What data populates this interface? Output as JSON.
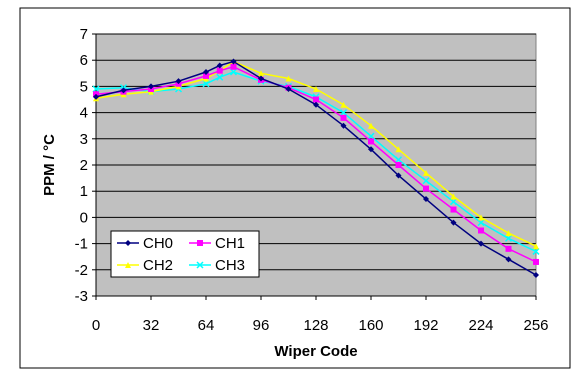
{
  "chart_data": {
    "type": "line",
    "title": "",
    "xlabel": "Wiper Code",
    "ylabel": "PPM / °C",
    "xlim": [
      0,
      256
    ],
    "ylim": [
      -3,
      7
    ],
    "xticks": [
      0,
      32,
      64,
      96,
      128,
      160,
      192,
      224,
      256
    ],
    "yticks": [
      -3,
      -2,
      -1,
      0,
      1,
      2,
      3,
      4,
      5,
      6,
      7
    ],
    "grid": true,
    "legend_position": "bottom-left",
    "plot_background": "#c0c0c0",
    "series": [
      {
        "name": "CH0",
        "color": "#000080",
        "marker": "diamond",
        "x": [
          0,
          16,
          32,
          48,
          64,
          72,
          80,
          96,
          112,
          128,
          144,
          160,
          176,
          192,
          208,
          224,
          240,
          256
        ],
        "y": [
          4.6,
          4.85,
          5.0,
          5.2,
          5.55,
          5.8,
          5.95,
          5.3,
          4.9,
          4.3,
          3.5,
          2.6,
          1.6,
          0.7,
          -0.2,
          -1.0,
          -1.6,
          -2.2
        ]
      },
      {
        "name": "CH1",
        "color": "#ff00ff",
        "marker": "square",
        "x": [
          0,
          16,
          32,
          48,
          64,
          72,
          80,
          96,
          112,
          128,
          144,
          160,
          176,
          192,
          208,
          224,
          240,
          256
        ],
        "y": [
          4.7,
          4.8,
          4.9,
          5.1,
          5.4,
          5.6,
          5.75,
          5.25,
          4.95,
          4.5,
          3.8,
          2.9,
          2.0,
          1.1,
          0.3,
          -0.5,
          -1.2,
          -1.7
        ]
      },
      {
        "name": "CH2",
        "color": "#ffff00",
        "marker": "triangle",
        "x": [
          0,
          16,
          32,
          48,
          64,
          72,
          80,
          96,
          112,
          128,
          144,
          160,
          176,
          192,
          208,
          224,
          240,
          256
        ],
        "y": [
          4.55,
          4.7,
          4.8,
          5.0,
          5.3,
          5.6,
          5.95,
          5.5,
          5.3,
          4.9,
          4.3,
          3.5,
          2.6,
          1.7,
          0.8,
          0.0,
          -0.6,
          -1.1
        ]
      },
      {
        "name": "CH3",
        "color": "#00ffff",
        "marker": "x",
        "x": [
          0,
          16,
          32,
          48,
          64,
          72,
          80,
          96,
          112,
          128,
          144,
          160,
          176,
          192,
          208,
          224,
          240,
          256
        ],
        "y": [
          4.9,
          4.95,
          4.8,
          4.9,
          5.1,
          5.35,
          5.55,
          5.2,
          5.0,
          4.6,
          4.0,
          3.1,
          2.2,
          1.4,
          0.6,
          -0.2,
          -0.8,
          -1.3
        ]
      }
    ]
  }
}
